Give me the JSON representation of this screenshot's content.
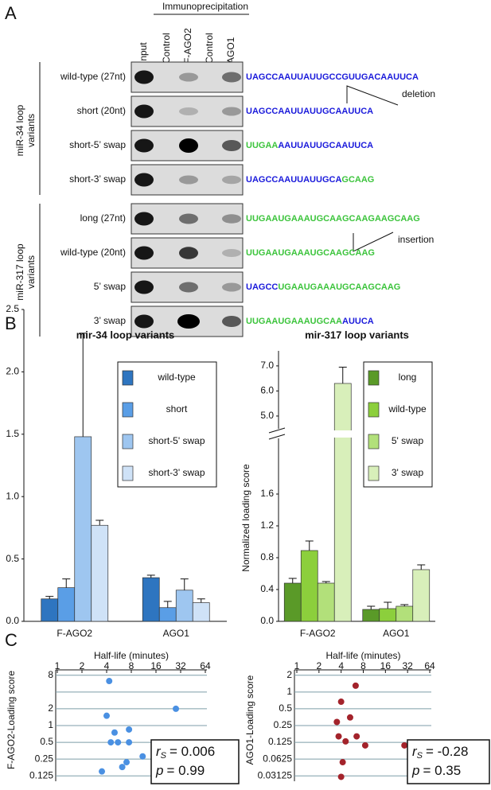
{
  "panel_labels": [
    "A",
    "B",
    "C"
  ],
  "panel_a": {
    "header": "Immunoprecipitation",
    "lanes": [
      "Input",
      "Control",
      "F-AGO2",
      "Control",
      "AGO1"
    ],
    "groups": [
      {
        "label_lines": [
          "miR-34 loop",
          "variants"
        ],
        "rows": [
          {
            "name": "wild-type (27nt)",
            "sequence": [
              {
                "text": "UAGCCAAUUAUUGCCGUUGACAAUUCA",
                "color": "#1a1adb"
              }
            ]
          },
          {
            "name": "short (20nt)",
            "sequence": [
              {
                "text": "UAGCCAAUUAUUGCAAUUCA",
                "color": "#1a1adb"
              }
            ]
          },
          {
            "name": "short-5’ swap",
            "sequence": [
              {
                "text": "UUGAA",
                "color": "#3cc43c"
              },
              {
                "text": "AAUUAUUGCAAUUCA",
                "color": "#1a1adb"
              }
            ]
          },
          {
            "name": "short-3’ swap",
            "sequence": [
              {
                "text": "UAGCCAAUUAUUGCA",
                "color": "#1a1adb"
              },
              {
                "text": "GCAAG",
                "color": "#3cc43c"
              }
            ]
          }
        ]
      },
      {
        "label_lines": [
          "miR-317 loop",
          "variants"
        ],
        "rows": [
          {
            "name": "long (27nt)",
            "sequence": [
              {
                "text": "UUGAAUGAAAUGCAAGCAAGAAGCAAG",
                "color": "#3cc43c"
              }
            ]
          },
          {
            "name": "wild-type (20nt)",
            "sequence": [
              {
                "text": "UUGAAUGAAAUGCAAGCAAG",
                "color": "#3cc43c"
              }
            ]
          },
          {
            "name": "5’ swap",
            "sequence": [
              {
                "text": "UAGCC",
                "color": "#1a1adb"
              },
              {
                "text": "UGAAUGAAAUGCAAGCAAG",
                "color": "#3cc43c"
              }
            ]
          },
          {
            "name": "3’ swap",
            "sequence": [
              {
                "text": "UUGAAUGAAAUGCAA",
                "color": "#3cc43c"
              },
              {
                "text": "AUUCA",
                "color": "#1a1adb"
              }
            ]
          }
        ]
      }
    ],
    "annotations": [
      "deletion",
      "insertion"
    ]
  },
  "chart_data": [
    {
      "type": "bar",
      "title": "mir-34 loop variants",
      "ylabel": "Normalized loading score",
      "categories": [
        "F-AGO2",
        "AGO1"
      ],
      "series": [
        {
          "name": "wild-type",
          "color": "#2e75c0",
          "values": [
            0.18,
            0.35
          ],
          "errors": [
            0.02,
            0.02
          ]
        },
        {
          "name": "short",
          "color": "#5a9ee6",
          "values": [
            0.27,
            0.11
          ],
          "errors": [
            0.07,
            0.05
          ]
        },
        {
          "name": "short-5' swap",
          "color": "#9ec6f0",
          "values": [
            1.48,
            0.25
          ],
          "errors": [
            0.83,
            0.09
          ]
        },
        {
          "name": "short-3' swap",
          "color": "#cfe2f7",
          "values": [
            0.77,
            0.15
          ],
          "errors": [
            0.04,
            0.03
          ]
        }
      ],
      "ylim": [
        0,
        2.5
      ],
      "yticks": [
        {
          "value": 0,
          "label": "0.0"
        },
        0.5,
        {
          "value": 1,
          "label": "1.0"
        },
        1.5,
        {
          "value": 2,
          "label": "2.0"
        },
        2.5
      ],
      "legend": "upper right"
    },
    {
      "type": "bar",
      "title": "mir-317 loop variants",
      "ylabel": "Normalized loading score",
      "categories": [
        "F-AGO2",
        "AGO1"
      ],
      "series": [
        {
          "name": "long",
          "color": "#5a9a28",
          "values": [
            0.48,
            0.15
          ],
          "errors": [
            0.06,
            0.04
          ]
        },
        {
          "name": "wild-type",
          "color": "#8ccf3c",
          "values": [
            0.89,
            0.16
          ],
          "errors": [
            0.12,
            0.08
          ]
        },
        {
          "name": "5' swap",
          "color": "#b2e07a",
          "values": [
            0.48,
            0.19
          ],
          "errors": [
            0.02,
            0.02
          ]
        },
        {
          "name": "3' swap",
          "color": "#d8efba",
          "values": [
            6.3,
            0.65
          ],
          "errors": [
            0.65,
            0.06
          ]
        }
      ],
      "ylim": [
        0,
        1.85
      ],
      "ylim_upper": [
        4.3,
        7.6
      ],
      "y_break": true,
      "yticks": [
        {
          "value": 0,
          "label": "0.0"
        },
        0.4,
        0.8,
        1.2,
        1.6,
        {
          "value": 5,
          "label": "5.0"
        },
        {
          "value": 6,
          "label": "6.0"
        },
        {
          "value": 7,
          "label": "7.0"
        }
      ],
      "legend": "upper right"
    },
    {
      "type": "scatter",
      "xlabel": "Half-life (minutes)",
      "ylabel": "F-AGO2-Loading score",
      "color": "#4a90e2",
      "x": [
        4.3,
        4.0,
        28,
        5.0,
        7.5,
        5.5,
        4.5,
        7.5,
        11,
        7.0,
        6.2,
        3.5
      ],
      "y": [
        6.3,
        1.5,
        2.0,
        0.75,
        0.85,
        0.5,
        0.5,
        0.5,
        0.28,
        0.22,
        0.18,
        0.15
      ],
      "xscale": "log2",
      "yscale": "log2",
      "xlim": [
        1,
        64
      ],
      "xticks": [
        1,
        2,
        4,
        8,
        16,
        32,
        64
      ],
      "ylim": [
        0.1,
        10
      ],
      "yticks": [
        8,
        {
          "value": 4,
          "label": null
        },
        2,
        1,
        0.5,
        0.25,
        0.125
      ],
      "grid": true,
      "stats": {
        "r": "r",
        "r_sub": "S",
        "r_value": "= 0.006",
        "p": "p",
        "p_value": "= 0.99"
      }
    },
    {
      "type": "scatter",
      "xlabel": "Half-life (minutes)",
      "ylabel": "AGO1-Loading score",
      "color": "#a3232b",
      "x": [
        6.3,
        4.0,
        5.3,
        3.5,
        3.7,
        4.6,
        6.5,
        8.5,
        29,
        4.2,
        4.0
      ],
      "y": [
        1.3,
        0.67,
        0.35,
        0.29,
        0.16,
        0.13,
        0.16,
        0.11,
        0.11,
        0.055,
        0.03
      ],
      "xscale": "log2",
      "yscale": "log2",
      "xlim": [
        1,
        64
      ],
      "xticks": [
        1,
        2,
        4,
        8,
        16,
        32,
        64
      ],
      "ylim": [
        0.025,
        2.5
      ],
      "yticks": [
        2,
        1,
        0.5,
        0.25,
        0.125,
        0.0625,
        0.03125
      ],
      "grid": true,
      "stats": {
        "r": "r",
        "r_sub": "S",
        "r_value": "= -0.28",
        "p": "p",
        "p_value": "= 0.35"
      }
    }
  ]
}
